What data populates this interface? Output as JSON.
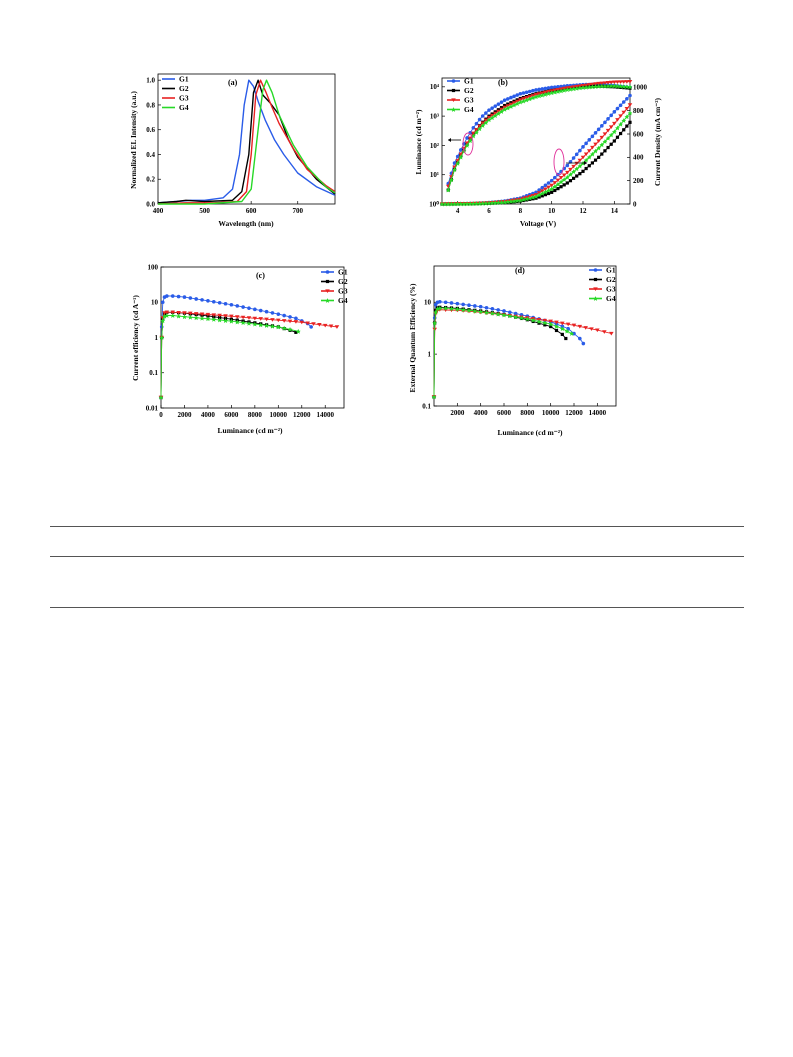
{
  "colors": {
    "G1": "#2a5ce8",
    "G2": "#000000",
    "G3": "#e82222",
    "G4": "#27d927",
    "marker_circle": "#e0309a"
  },
  "chart_data": [
    {
      "panel": "(a)",
      "type": "line",
      "xlabel": "Wavelength (nm)",
      "ylabel": "Normalized EL Intensity (a.u.)",
      "xlim": [
        400,
        780
      ],
      "ylim": [
        0,
        1.05
      ],
      "xticks": [
        400,
        500,
        600,
        700
      ],
      "yticks": [
        0.0,
        0.2,
        0.4,
        0.6,
        0.8,
        1.0
      ],
      "legend": "top-left",
      "series": [
        {
          "name": "G1",
          "color_key": "G1",
          "peak": 595,
          "x": [
            400,
            440,
            470,
            500,
            540,
            560,
            575,
            585,
            595,
            605,
            615,
            630,
            650,
            670,
            700,
            740,
            780
          ],
          "y": [
            0.01,
            0.02,
            0.03,
            0.03,
            0.05,
            0.12,
            0.4,
            0.8,
            1.0,
            0.95,
            0.83,
            0.68,
            0.52,
            0.4,
            0.25,
            0.14,
            0.07
          ]
        },
        {
          "name": "G2",
          "color_key": "G2",
          "peak": 615,
          "x": [
            400,
            440,
            460,
            500,
            560,
            580,
            595,
            605,
            615,
            625,
            640,
            660,
            680,
            700,
            740,
            780
          ],
          "y": [
            0.01,
            0.02,
            0.03,
            0.02,
            0.03,
            0.1,
            0.4,
            0.9,
            1.0,
            0.88,
            0.82,
            0.72,
            0.52,
            0.38,
            0.2,
            0.08
          ]
        },
        {
          "name": "G3",
          "color_key": "G3",
          "peak": 620,
          "x": [
            400,
            460,
            520,
            570,
            590,
            600,
            610,
            620,
            632,
            645,
            660,
            690,
            720,
            760,
            780
          ],
          "y": [
            0.0,
            0.01,
            0.01,
            0.02,
            0.1,
            0.4,
            0.88,
            1.0,
            0.9,
            0.78,
            0.65,
            0.45,
            0.28,
            0.15,
            0.1
          ]
        },
        {
          "name": "G4",
          "color_key": "G4",
          "peak": 633,
          "x": [
            400,
            500,
            580,
            600,
            615,
            625,
            633,
            645,
            660,
            690,
            720,
            760,
            780
          ],
          "y": [
            0.0,
            0.0,
            0.02,
            0.12,
            0.6,
            0.92,
            1.0,
            0.9,
            0.72,
            0.48,
            0.3,
            0.14,
            0.09
          ]
        }
      ]
    },
    {
      "panel": "(b)",
      "type": "line",
      "xlabel": "Voltage (V)",
      "ylabel": "Luminance (cd m⁻²)",
      "y2label": "Current Density (mA cm⁻²)",
      "xlim": [
        3,
        15
      ],
      "ylim_log": [
        1,
        20000
      ],
      "y2lim": [
        0,
        1080
      ],
      "xticks": [
        4,
        6,
        8,
        10,
        12,
        14
      ],
      "yticks": [
        "10⁰",
        "10¹",
        "10²",
        "10³",
        "10⁴"
      ],
      "y2ticks": [
        0,
        200,
        400,
        600,
        800,
        1000
      ],
      "legend": "top-left",
      "luminance": [
        {
          "name": "G1",
          "color_key": "G1",
          "x": [
            3.4,
            3.8,
            4.2,
            4.6,
            5,
            5.5,
            6,
            7,
            8,
            9,
            10,
            11,
            12,
            13,
            14,
            15
          ],
          "y": [
            5,
            25,
            70,
            180,
            400,
            900,
            1600,
            3500,
            5800,
            7800,
            9500,
            10800,
            11800,
            12300,
            11000,
            9500
          ]
        },
        {
          "name": "G2",
          "color_key": "G2",
          "x": [
            3.4,
            3.8,
            4.2,
            4.6,
            5,
            5.5,
            6,
            7,
            8,
            9,
            10,
            11,
            12,
            13,
            14,
            15
          ],
          "y": [
            3,
            15,
            45,
            110,
            250,
            550,
            1000,
            2300,
            4000,
            5800,
            7500,
            9000,
            10000,
            10500,
            10000,
            9000
          ]
        },
        {
          "name": "G3",
          "color_key": "G3",
          "x": [
            3.4,
            3.8,
            4.2,
            4.6,
            5,
            5.5,
            6,
            7,
            8,
            9,
            10,
            11,
            12,
            13,
            14,
            15
          ],
          "y": [
            4,
            18,
            50,
            120,
            260,
            520,
            900,
            2000,
            3600,
            5400,
            7300,
            9200,
            11000,
            13000,
            14500,
            15000
          ]
        },
        {
          "name": "G4",
          "color_key": "G4",
          "x": [
            3.4,
            3.8,
            4.2,
            4.6,
            5,
            5.5,
            6,
            7,
            8,
            9,
            10,
            11,
            12,
            13,
            14,
            15
          ],
          "y": [
            3,
            15,
            40,
            100,
            210,
            430,
            750,
            1700,
            3000,
            4600,
            6300,
            8000,
            9500,
            10500,
            10800,
            10000
          ]
        }
      ],
      "current_density": [
        {
          "name": "G1",
          "color_key": "G1",
          "x": [
            3,
            4,
            5,
            6,
            7,
            8,
            9,
            10,
            11,
            12,
            13,
            14,
            15
          ],
          "y": [
            0,
            2,
            5,
            12,
            25,
            50,
            100,
            200,
            330,
            490,
            640,
            790,
            930
          ]
        },
        {
          "name": "G2",
          "color_key": "G2",
          "x": [
            3,
            4,
            5,
            6,
            7,
            8,
            9,
            10,
            11,
            12,
            13,
            14,
            15
          ],
          "y": [
            0,
            1,
            3,
            6,
            12,
            25,
            50,
            100,
            180,
            280,
            400,
            540,
            700
          ]
        },
        {
          "name": "G3",
          "color_key": "G3",
          "x": [
            3,
            4,
            5,
            6,
            7,
            8,
            9,
            10,
            11,
            12,
            13,
            14,
            15
          ],
          "y": [
            0,
            2,
            4,
            10,
            20,
            40,
            80,
            160,
            270,
            400,
            540,
            690,
            850
          ]
        },
        {
          "name": "G4",
          "color_key": "G4",
          "x": [
            3,
            4,
            5,
            6,
            7,
            8,
            9,
            10,
            11,
            12,
            13,
            14,
            15
          ],
          "y": [
            0,
            1,
            3,
            8,
            16,
            32,
            65,
            130,
            230,
            350,
            480,
            620,
            780
          ]
        }
      ]
    },
    {
      "panel": "(c)",
      "type": "scatter",
      "xlabel": "Luminance (cd m⁻²)",
      "ylabel": "Current efficiency (cd A⁻¹)",
      "xlim": [
        0,
        15600
      ],
      "ylim_log": [
        0.01,
        100
      ],
      "xticks": [
        0,
        2000,
        4000,
        6000,
        8000,
        10000,
        12000,
        14000
      ],
      "yticks": [
        "0.01",
        "0.1",
        "1",
        "10",
        "100"
      ],
      "legend": "top-right",
      "series": [
        {
          "name": "G1",
          "color_key": "G1",
          "x": [
            0,
            60,
            150,
            300,
            500,
            1000,
            2000,
            4000,
            6000,
            8000,
            10000,
            11500,
            12500,
            12800
          ],
          "y": [
            0.02,
            2,
            10,
            14,
            15,
            15,
            14,
            11,
            8.5,
            6.3,
            4.6,
            3.5,
            2.5,
            2.0
          ]
        },
        {
          "name": "G2",
          "color_key": "G2",
          "x": [
            0,
            60,
            150,
            300,
            500,
            1000,
            2000,
            4000,
            6000,
            8000,
            10000,
            11000,
            11500
          ],
          "y": [
            0.02,
            1,
            3.5,
            4.7,
            5.2,
            5.2,
            4.9,
            4.1,
            3.3,
            2.6,
            2.0,
            1.6,
            1.4
          ]
        },
        {
          "name": "G3",
          "color_key": "G3",
          "x": [
            0,
            60,
            150,
            300,
            500,
            1000,
            2000,
            4000,
            6000,
            8000,
            10000,
            12000,
            14000,
            15000
          ],
          "y": [
            0.02,
            1,
            3.6,
            5.0,
            5.2,
            5.2,
            5.0,
            4.5,
            4.0,
            3.5,
            3.1,
            2.7,
            2.2,
            2.0
          ]
        },
        {
          "name": "G4",
          "color_key": "G4",
          "x": [
            0,
            60,
            150,
            300,
            500,
            1000,
            2000,
            4000,
            6000,
            8000,
            10000,
            11000,
            11700
          ],
          "y": [
            0.02,
            1,
            3.0,
            4.0,
            4.2,
            4.2,
            3.9,
            3.4,
            2.9,
            2.4,
            2.0,
            1.7,
            1.5
          ]
        }
      ]
    },
    {
      "panel": "(d)",
      "type": "scatter",
      "xlabel": "Luminance (cd m⁻²)",
      "ylabel": "External Quantum Efficiency (%)",
      "xlim": [
        0,
        15600
      ],
      "ylim_log": [
        0.1,
        50
      ],
      "xticks": [
        2000,
        4000,
        6000,
        8000,
        10000,
        12000,
        14000
      ],
      "yticks": [
        "0.1",
        "1",
        "10"
      ],
      "legend": "top-right",
      "series": [
        {
          "name": "G1",
          "color_key": "G1",
          "x": [
            0,
            60,
            150,
            300,
            500,
            1000,
            2000,
            4000,
            6000,
            8000,
            10000,
            11500,
            12500,
            12800
          ],
          "y": [
            0.15,
            5,
            9,
            10,
            10.2,
            10,
            9.4,
            8.2,
            6.8,
            5.4,
            4.2,
            3.1,
            2.0,
            1.6
          ]
        },
        {
          "name": "G2",
          "color_key": "G2",
          "x": [
            0,
            60,
            150,
            300,
            500,
            1000,
            2000,
            4000,
            6000,
            8000,
            10000,
            11000,
            11300
          ],
          "y": [
            0.15,
            4,
            7,
            7.8,
            8,
            7.9,
            7.6,
            6.8,
            5.8,
            4.6,
            3.4,
            2.4,
            2.0
          ]
        },
        {
          "name": "G3",
          "color_key": "G3",
          "x": [
            0,
            60,
            150,
            300,
            500,
            1000,
            2000,
            4000,
            6000,
            8000,
            10000,
            12000,
            14000,
            15200
          ],
          "y": [
            0.15,
            3,
            6,
            7,
            7.2,
            7.1,
            7.0,
            6.4,
            5.7,
            5.0,
            4.3,
            3.6,
            2.9,
            2.5
          ]
        },
        {
          "name": "G4",
          "color_key": "G4",
          "x": [
            0,
            60,
            150,
            300,
            500,
            1000,
            2000,
            4000,
            6000,
            8000,
            10000,
            11000,
            11800
          ],
          "y": [
            0.15,
            4,
            6.5,
            7.5,
            7.7,
            7.7,
            7.4,
            6.6,
            5.7,
            4.8,
            3.8,
            3.1,
            2.5
          ]
        }
      ]
    }
  ]
}
